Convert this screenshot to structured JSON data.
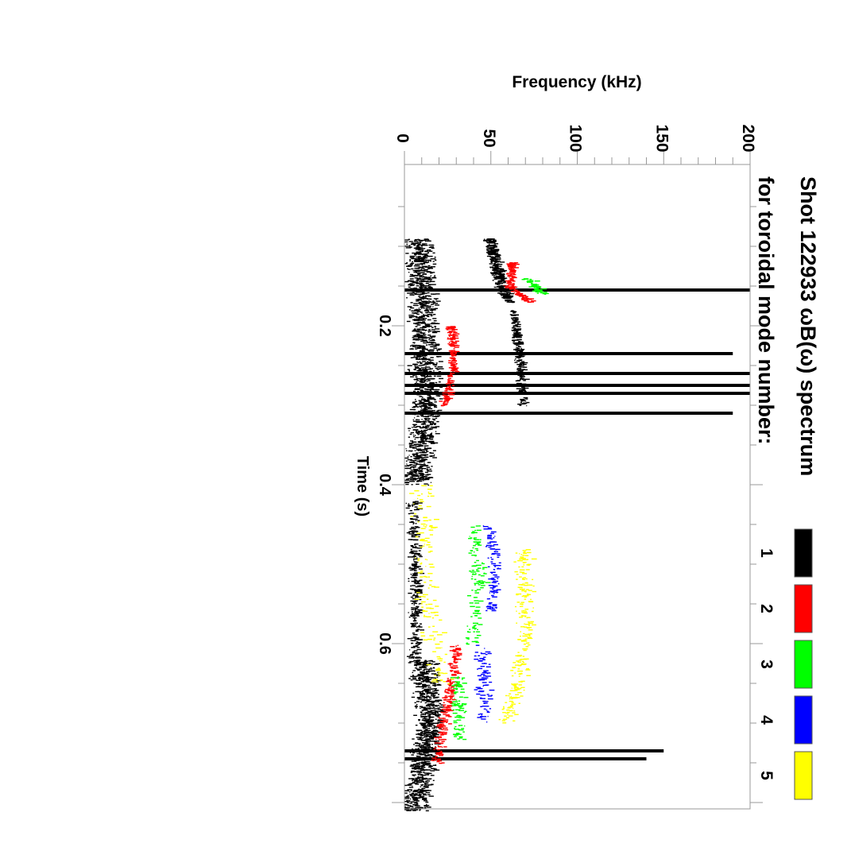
{
  "chart_data": {
    "type": "scatter",
    "orientation": "rotated-90-clockwise",
    "title": "Shot 122933 ωB(ω) spectrum",
    "subtitle": "for toroidal mode number:",
    "xlabel": "Time (s)",
    "ylabel": "Frequency (kHz)",
    "xlim": [
      0.0,
      0.81
    ],
    "ylim": [
      0,
      200
    ],
    "x_ticks": [
      "0.2",
      "0.4",
      "0.6"
    ],
    "x_tick_values": [
      0.2,
      0.4,
      0.6
    ],
    "y_ticks": [
      "0",
      "50",
      "100",
      "150",
      "200"
    ],
    "y_tick_values": [
      0,
      50,
      100,
      150,
      200
    ],
    "legend": [
      {
        "label": "1",
        "color": "#000000"
      },
      {
        "label": "2",
        "color": "#ff0000"
      },
      {
        "label": "3",
        "color": "#00ff00"
      },
      {
        "label": "4",
        "color": "#0000ff"
      },
      {
        "label": "5",
        "color": "#ffff00"
      }
    ],
    "series": [
      {
        "name": "1",
        "color": "#000000",
        "tracks": [
          {
            "t": [
              0.09,
              0.2,
              0.3,
              0.4
            ],
            "f": [
              8,
              10,
              12,
              6
            ],
            "spread": 10,
            "density": 1400
          },
          {
            "t": [
              0.62,
              0.7,
              0.78,
              0.81
            ],
            "f": [
              10,
              14,
              8,
              4
            ],
            "spread": 9,
            "density": 900
          },
          {
            "t": [
              0.09,
              0.12,
              0.15,
              0.17
            ],
            "f": [
              48,
              52,
              55,
              60
            ],
            "spread": 4,
            "density": 350
          },
          {
            "t": [
              0.18,
              0.24,
              0.3
            ],
            "f": [
              62,
              66,
              68
            ],
            "spread": 3,
            "density": 250
          },
          {
            "t": [
              0.42,
              0.55,
              0.62
            ],
            "f": [
              4,
              6,
              5
            ],
            "spread": 4,
            "density": 300
          }
        ]
      },
      {
        "name": "2",
        "color": "#ff0000",
        "tracks": [
          {
            "t": [
              0.12,
              0.15,
              0.17
            ],
            "f": [
              62,
              60,
              72
            ],
            "spread": 3,
            "density": 150
          },
          {
            "t": [
              0.2,
              0.25,
              0.3
            ],
            "f": [
              26,
              28,
              22
            ],
            "spread": 3,
            "density": 200
          },
          {
            "t": [
              0.6,
              0.68,
              0.75
            ],
            "f": [
              30,
              24,
              18
            ],
            "spread": 4,
            "density": 220
          }
        ]
      },
      {
        "name": "3",
        "color": "#00ff00",
        "tracks": [
          {
            "t": [
              0.14,
              0.16
            ],
            "f": [
              70,
              80
            ],
            "spread": 4,
            "density": 60
          },
          {
            "t": [
              0.45,
              0.52,
              0.6
            ],
            "f": [
              40,
              42,
              38
            ],
            "spread": 5,
            "density": 120
          },
          {
            "t": [
              0.64,
              0.72
            ],
            "f": [
              30,
              32
            ],
            "spread": 5,
            "density": 90
          }
        ]
      },
      {
        "name": "4",
        "color": "#0000ff",
        "tracks": [
          {
            "t": [
              0.45,
              0.5,
              0.56
            ],
            "f": [
              48,
              52,
              50
            ],
            "spread": 4,
            "density": 100
          },
          {
            "t": [
              0.6,
              0.7
            ],
            "f": [
              44,
              46
            ],
            "spread": 5,
            "density": 80
          }
        ]
      },
      {
        "name": "5",
        "color": "#ffff00",
        "tracks": [
          {
            "t": [
              0.48,
              0.6,
              0.7
            ],
            "f": [
              68,
              70,
              58
            ],
            "spread": 6,
            "density": 250
          },
          {
            "t": [
              0.4,
              0.55,
              0.65
            ],
            "f": [
              10,
              12,
              20
            ],
            "spread": 8,
            "density": 150
          }
        ]
      }
    ],
    "broadband_bursts": [
      {
        "t": 0.155,
        "fmax": 200
      },
      {
        "t": 0.26,
        "fmax": 200
      },
      {
        "t": 0.275,
        "fmax": 200
      },
      {
        "t": 0.285,
        "fmax": 200
      },
      {
        "t": 0.31,
        "fmax": 190
      },
      {
        "t": 0.235,
        "fmax": 190
      },
      {
        "t": 0.735,
        "fmax": 150
      },
      {
        "t": 0.745,
        "fmax": 140
      }
    ]
  }
}
